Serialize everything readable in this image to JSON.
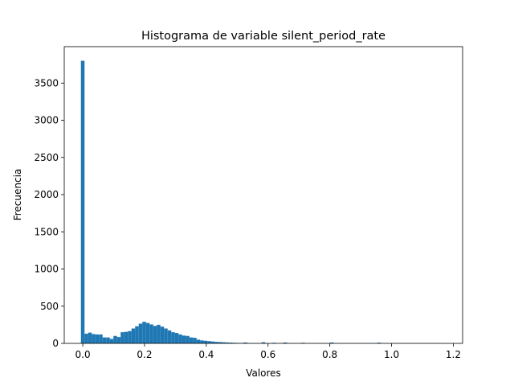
{
  "chart_data": {
    "type": "bar",
    "title": "Histograma de variable silent_period_rate",
    "xlabel": "Valores",
    "ylabel": "Frecuencia",
    "xlim": [
      -0.06,
      1.23
    ],
    "ylim": [
      0,
      3990
    ],
    "xticks": [
      0.0,
      0.2,
      0.4,
      0.6,
      0.8,
      1.0,
      1.2
    ],
    "xtick_labels": [
      "0.0",
      "0.2",
      "0.4",
      "0.6",
      "0.8",
      "1.0",
      "1.2"
    ],
    "yticks": [
      0,
      500,
      1000,
      1500,
      2000,
      2500,
      3000,
      3500
    ],
    "ytick_labels": [
      "0",
      "500",
      "1000",
      "1500",
      "2000",
      "2500",
      "3000",
      "3500"
    ],
    "grid": false,
    "bar_color": "#1f77b4",
    "bin_start": -0.006,
    "bin_width": 0.0117,
    "counts": [
      3800,
      130,
      145,
      125,
      120,
      120,
      80,
      80,
      60,
      100,
      85,
      150,
      155,
      165,
      200,
      230,
      265,
      290,
      275,
      255,
      235,
      250,
      225,
      200,
      175,
      150,
      140,
      120,
      105,
      100,
      80,
      75,
      50,
      40,
      35,
      30,
      25,
      20,
      18,
      15,
      12,
      10,
      8,
      6,
      5,
      12,
      4,
      3,
      2,
      2,
      15,
      1,
      1,
      8,
      1,
      1,
      12,
      1,
      1,
      1,
      1,
      8,
      1,
      1,
      1,
      1,
      1,
      1,
      1,
      12,
      1,
      1,
      1,
      1,
      1,
      1,
      1,
      1,
      1,
      1,
      1,
      1,
      10,
      1,
      1,
      1,
      1,
      1,
      1,
      1,
      1,
      1,
      1,
      1,
      1,
      1,
      1,
      1,
      1,
      1
    ]
  }
}
